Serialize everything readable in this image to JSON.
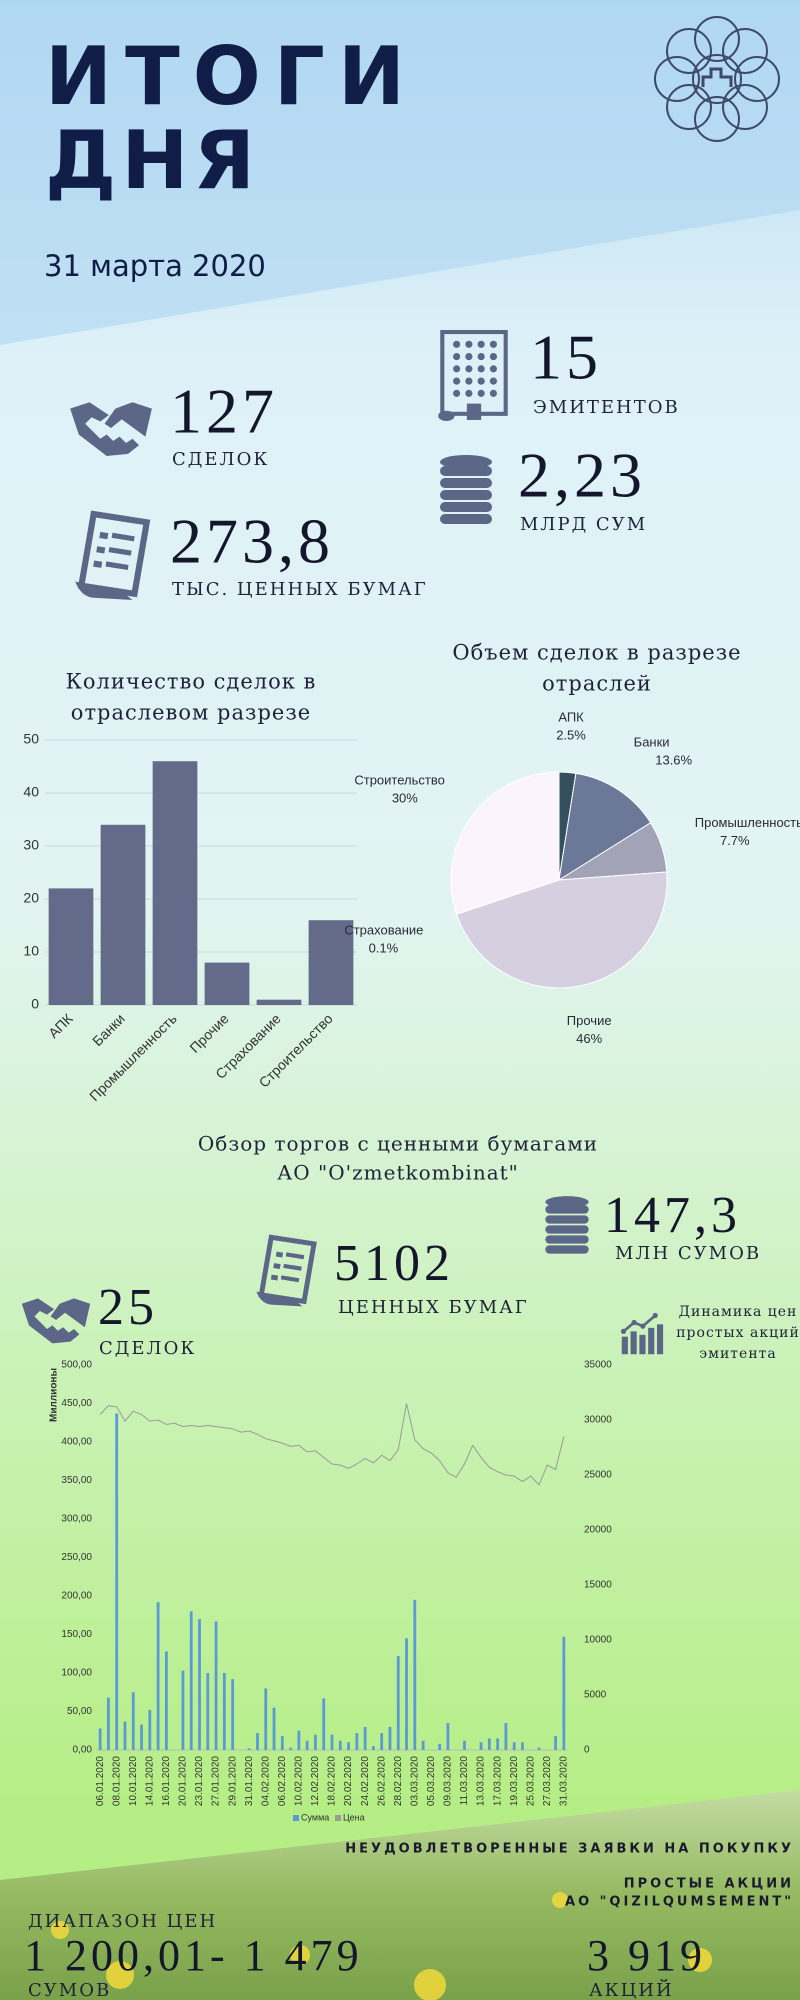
{
  "header": {
    "title_lines": [
      "ИТОГИ",
      "ДНЯ"
    ],
    "date": "31 марта 2020"
  },
  "summary": [
    {
      "value": "127",
      "label": "СДЕЛОК"
    },
    {
      "value": "273,8",
      "label": "ТЫС. ЦЕННЫХ БУМАГ"
    },
    {
      "value": "15",
      "label": "ЭМИТЕНТОВ"
    },
    {
      "value": "2,23",
      "label": "МЛРД СУМ"
    }
  ],
  "issuer_section": {
    "title_lines": [
      "Обзор торгов с ценными бумагами",
      "АО \"O'zmetkombinat\""
    ],
    "stats": [
      {
        "value": "147,3",
        "label": "МЛН СУМОВ"
      },
      {
        "value": "5102",
        "label": "ЦЕННЫХ БУМАГ"
      },
      {
        "value": "25",
        "label": "СДЕЛОК"
      }
    ]
  },
  "chart_data": [
    {
      "type": "bar",
      "title": [
        "Количество сделок в",
        "отраслевом разрезе"
      ],
      "categories": [
        "АПК",
        "Банки",
        "Промышленность",
        "Прочие",
        "Страхование",
        "Строительство"
      ],
      "values": [
        22,
        34,
        46,
        8,
        1,
        16
      ],
      "color": "#646b8a",
      "ylim": [
        0,
        50
      ],
      "yticks": [
        0,
        10,
        20,
        30,
        40,
        50
      ],
      "grid": true
    },
    {
      "type": "pie",
      "title": [
        "Объем сделок в разрезе",
        "отраслей"
      ],
      "categories": [
        "АПК",
        "Банки",
        "Промышленность",
        "Прочие",
        "Страхование",
        "Строительство"
      ],
      "values": [
        2.5,
        13.6,
        7.7,
        46,
        0.1,
        30
      ],
      "value_labels": [
        "2.5%",
        "13.6%",
        "7.7%",
        "46%",
        "0.1%",
        "30%"
      ],
      "colors": [
        "#34505f",
        "#6c7897",
        "#a3a3b8",
        "#d6cfe0",
        "#8a8aa0",
        "#fcf4fd"
      ]
    },
    {
      "type": "combo",
      "title": [
        "Динамика цен",
        "простых акций",
        "эмитента"
      ],
      "y_label": "Миллионы",
      "categories": [
        "06.01.2020",
        null,
        "08.01.2020",
        null,
        "10.01.2020",
        null,
        "14.01.2020",
        null,
        "16.01.2020",
        null,
        "20.01.2020",
        null,
        "23.01.2020",
        null,
        "27.01.2020",
        null,
        "29.01.2020",
        null,
        "31.01.2020",
        null,
        "04.02.2020",
        null,
        "06.02.2020",
        null,
        "10.02.2020",
        null,
        "12.02.2020",
        null,
        "18.02.2020",
        null,
        "20.02.2020",
        null,
        "24.02.2020",
        null,
        "26.02.2020",
        null,
        "28.02.2020",
        null,
        "03.03.2020",
        null,
        "05.03.2020",
        null,
        "09.03.2020",
        null,
        "11.03.2020",
        null,
        "13.03.2020",
        null,
        "17.03.2020",
        null,
        "19.03.2020",
        null,
        "25.03.2020",
        null,
        "27.03.2020",
        null,
        "31.03.2020"
      ],
      "series": [
        {
          "name": "Сумма",
          "type": "bar",
          "color": "#5b9bd5",
          "values": [
            28,
            68,
            437,
            37,
            75,
            33,
            52,
            192,
            128,
            0,
            103,
            180,
            170,
            100,
            167,
            100,
            92,
            0,
            2,
            22,
            80,
            55,
            18,
            3,
            25,
            12,
            20,
            67,
            20,
            12,
            10,
            22,
            30,
            5,
            22,
            30,
            122,
            145,
            195,
            12,
            0,
            8,
            35,
            0,
            12,
            0,
            10,
            15,
            15,
            35,
            10,
            10,
            0,
            3,
            0,
            18,
            147
          ]
        },
        {
          "name": "Цена",
          "type": "line",
          "axis": "y2",
          "color": "#9a9a9a",
          "values": [
            30500,
            31300,
            31200,
            29900,
            30800,
            30500,
            29900,
            30000,
            29600,
            29700,
            29400,
            29500,
            29400,
            29500,
            29400,
            29300,
            29200,
            28900,
            29000,
            28700,
            28300,
            28100,
            27900,
            27600,
            27700,
            27100,
            27200,
            26600,
            26000,
            25900,
            25600,
            26000,
            26500,
            26100,
            26800,
            26300,
            27300,
            31500,
            28200,
            27400,
            27000,
            26300,
            25200,
            24800,
            26000,
            27700,
            26600,
            25700,
            25300,
            25000,
            24900,
            24400,
            24900,
            24100,
            25900,
            25500,
            28500
          ]
        }
      ],
      "ylim": [
        0,
        500
      ],
      "yticks": [
        {
          "value": 0,
          "label": "0,00"
        },
        {
          "value": 50,
          "label": "50,00"
        },
        {
          "value": 100,
          "label": "100,00"
        },
        {
          "value": 150,
          "label": "150,00"
        },
        {
          "value": 200,
          "label": "200,00"
        },
        {
          "value": 250,
          "label": "250,00"
        },
        {
          "value": 300,
          "label": "300,00"
        },
        {
          "value": 350,
          "label": "350,00"
        },
        {
          "value": 400,
          "label": "400,00"
        },
        {
          "value": 450,
          "label": "450,00"
        },
        {
          "value": 500,
          "label": "500,00"
        }
      ],
      "y2lim": [
        0,
        35000
      ],
      "y2ticks": [
        0,
        5000,
        10000,
        15000,
        20000,
        25000,
        30000,
        35000
      ]
    }
  ],
  "footer": {
    "heading": "НЕУДОВЛЕТВОРЕННЫЕ ЗАЯВКИ НА ПОКУПКУ",
    "security_lines": [
      "ПРОСТЫЕ АКЦИИ",
      "АО \"QIZILQUMSEMENT\""
    ],
    "price_range_label": "ДИАПАЗОН ЦЕН",
    "price_range": "1 200,01- 1 479",
    "price_unit": "СУМОВ",
    "quantity": "3 919",
    "quantity_unit": "АКЦИЙ"
  }
}
